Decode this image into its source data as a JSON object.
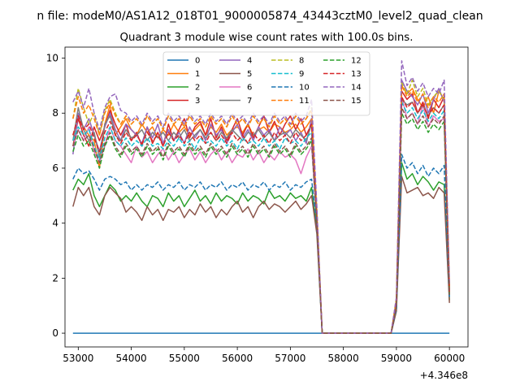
{
  "chart_data": {
    "type": "line",
    "suptitle": "n file: modeM0/AS1A12_018T01_9000005874_43443cztM0_level2_quad_clean",
    "title": "Quadrant 3 module wise count rates with 100.0s bins.",
    "xlabel": "",
    "ylabel": "",
    "x_offset_label": "+4.346e8",
    "xlim": [
      52750,
      60350
    ],
    "ylim": [
      -0.5,
      10.4
    ],
    "xticks": [
      53000,
      54000,
      55000,
      56000,
      57000,
      58000,
      59000,
      60000
    ],
    "yticks": [
      0,
      2,
      4,
      6,
      8,
      10
    ],
    "grid": false,
    "legend_position": "top-center",
    "legend_columns": 4,
    "x_start": 52900,
    "bin_width": 100,
    "series": [
      {
        "name": "0",
        "color": "#1f77b4",
        "dash": "solid",
        "values": [
          0,
          0,
          0,
          0,
          0,
          0,
          0,
          0,
          0,
          0,
          0,
          0,
          0,
          0,
          0,
          0,
          0,
          0,
          0,
          0,
          0,
          0,
          0,
          0,
          0,
          0,
          0,
          0,
          0,
          0,
          0,
          0,
          0,
          0,
          0,
          0,
          0,
          0,
          0,
          0,
          0,
          0,
          0,
          0,
          0,
          0,
          0,
          0,
          0,
          0,
          0,
          0,
          0,
          0,
          0,
          0,
          0,
          0,
          0,
          0,
          0,
          0,
          0,
          0,
          0,
          0,
          0,
          0,
          0,
          0,
          0,
          0
        ]
      },
      {
        "name": "1",
        "color": "#ff7f0e",
        "dash": "solid",
        "values": [
          7.2,
          7.8,
          7.5,
          7.2,
          7.0,
          6.0,
          7.6,
          8.3,
          7.2,
          7.5,
          7.8,
          7.4,
          7.2,
          7.6,
          7.3,
          7.5,
          7.1,
          7.4,
          7.2,
          7.6,
          7.3,
          7.5,
          7.2,
          7.4,
          7.6,
          7.2,
          7.5,
          7.3,
          7.6,
          7.2,
          7.4,
          7.5,
          7.3,
          7.6,
          7.2,
          7.4,
          7.5,
          7.3,
          7.6,
          7.5,
          7.3,
          7.4,
          7.6,
          7.3,
          7.5,
          7.8,
          4.0,
          0,
          0,
          0,
          0,
          0,
          0,
          0,
          0,
          0,
          0,
          0,
          0,
          0,
          0,
          1.2,
          9.0,
          8.7,
          8.9,
          8.5,
          8.2,
          8.6,
          8.0,
          8.8,
          8.5,
          1.6
        ]
      },
      {
        "name": "2",
        "color": "#2ca02c",
        "dash": "solid",
        "values": [
          5.2,
          5.6,
          5.4,
          5.8,
          5.0,
          4.6,
          5.0,
          5.4,
          5.2,
          4.8,
          5.0,
          4.8,
          5.1,
          4.8,
          4.6,
          5.0,
          4.9,
          4.6,
          5.1,
          4.8,
          5.0,
          4.6,
          4.9,
          5.2,
          4.8,
          5.0,
          4.7,
          5.1,
          4.8,
          5.0,
          4.9,
          4.7,
          5.1,
          4.8,
          5.0,
          4.9,
          4.7,
          5.2,
          4.9,
          5.0,
          4.8,
          5.1,
          4.9,
          5.0,
          4.8,
          5.3,
          3.8,
          0,
          0,
          0,
          0,
          0,
          0,
          0,
          0,
          0,
          0,
          0,
          0,
          0,
          0,
          0.9,
          6.2,
          5.6,
          5.8,
          5.4,
          5.7,
          5.5,
          5.2,
          5.5,
          5.4,
          1.2
        ]
      },
      {
        "name": "3",
        "color": "#d62728",
        "dash": "solid",
        "values": [
          6.8,
          7.8,
          7.2,
          6.8,
          7.5,
          7.0,
          7.5,
          8.1,
          7.6,
          7.2,
          7.6,
          7.0,
          7.3,
          6.8,
          7.5,
          6.9,
          7.3,
          6.8,
          7.6,
          7.0,
          7.4,
          7.8,
          7.1,
          7.5,
          7.7,
          7.2,
          7.8,
          7.1,
          7.5,
          7.0,
          7.4,
          7.8,
          7.2,
          7.6,
          7.1,
          7.5,
          7.9,
          7.3,
          7.7,
          7.2,
          7.6,
          7.9,
          7.4,
          7.8,
          7.2,
          7.6,
          4.2,
          0,
          0,
          0,
          0,
          0,
          0,
          0,
          0,
          0,
          0,
          0,
          0,
          0,
          0,
          1.1,
          8.8,
          8.5,
          8.7,
          8.0,
          8.4,
          7.8,
          8.5,
          8.2,
          8.6,
          1.5
        ]
      },
      {
        "name": "4",
        "color": "#9467bd",
        "dash": "solid",
        "values": [
          6.5,
          8.0,
          7.4,
          7.8,
          7.2,
          6.6,
          7.5,
          8.0,
          7.4,
          7.0,
          7.6,
          7.4,
          7.2,
          6.9,
          7.5,
          7.1,
          7.6,
          6.9,
          7.4,
          7.0,
          7.3,
          6.9,
          7.5,
          7.1,
          7.4,
          7.0,
          7.6,
          7.2,
          7.4,
          6.9,
          7.3,
          7.6,
          7.1,
          7.4,
          7.0,
          7.5,
          7.2,
          7.4,
          7.0,
          7.5,
          7.2,
          7.4,
          7.0,
          7.3,
          6.9,
          7.8,
          4.1,
          0,
          0,
          0,
          0,
          0,
          0,
          0,
          0,
          0,
          0,
          0,
          0,
          0,
          0,
          1.1,
          9.2,
          8.8,
          8.6,
          8.3,
          8.7,
          8.0,
          8.5,
          8.9,
          8.4,
          1.6
        ]
      },
      {
        "name": "5",
        "color": "#8c564b",
        "dash": "solid",
        "values": [
          4.6,
          5.3,
          5.0,
          5.3,
          4.6,
          4.3,
          5.0,
          5.3,
          5.1,
          4.9,
          4.4,
          4.6,
          4.4,
          4.1,
          4.6,
          4.3,
          4.5,
          4.1,
          4.5,
          4.4,
          4.6,
          4.2,
          4.5,
          4.3,
          4.7,
          4.4,
          4.6,
          4.2,
          4.5,
          4.3,
          4.6,
          4.8,
          4.4,
          4.6,
          4.2,
          4.6,
          4.8,
          4.5,
          4.7,
          4.6,
          4.4,
          4.6,
          4.8,
          4.5,
          4.7,
          5.0,
          3.6,
          0,
          0,
          0,
          0,
          0,
          0,
          0,
          0,
          0,
          0,
          0,
          0,
          0,
          0,
          0.8,
          5.7,
          5.1,
          5.2,
          5.3,
          5.0,
          5.1,
          4.9,
          5.3,
          5.1,
          1.1
        ]
      },
      {
        "name": "6",
        "color": "#e377c2",
        "dash": "solid",
        "values": [
          6.8,
          7.4,
          7.0,
          7.5,
          6.6,
          6.2,
          6.8,
          7.5,
          7.0,
          6.8,
          6.5,
          6.2,
          6.8,
          6.4,
          6.6,
          6.2,
          6.5,
          6.7,
          6.3,
          6.6,
          6.2,
          6.5,
          6.7,
          6.3,
          6.6,
          6.2,
          6.5,
          6.7,
          6.3,
          6.6,
          6.2,
          6.5,
          6.4,
          6.7,
          6.3,
          6.6,
          6.2,
          6.5,
          6.3,
          6.6,
          6.4,
          6.5,
          6.3,
          5.8,
          6.4,
          6.8,
          4.0,
          0,
          0,
          0,
          0,
          0,
          0,
          0,
          0,
          0,
          0,
          0,
          0,
          0,
          0,
          1.0,
          8.6,
          7.8,
          8.0,
          7.6,
          8.3,
          7.5,
          7.9,
          7.7,
          7.8,
          1.4
        ]
      },
      {
        "name": "7",
        "color": "#7f7f7f",
        "dash": "solid",
        "values": [
          7.0,
          8.2,
          7.4,
          7.0,
          7.3,
          6.4,
          7.6,
          7.9,
          7.2,
          7.0,
          7.4,
          7.1,
          7.2,
          7.4,
          7.0,
          7.3,
          7.1,
          7.3,
          7.0,
          7.3,
          7.1,
          7.4,
          7.0,
          7.2,
          7.4,
          7.1,
          7.3,
          7.0,
          7.3,
          7.1,
          7.4,
          7.2,
          7.0,
          7.3,
          7.2,
          7.4,
          7.1,
          7.3,
          7.0,
          7.2,
          7.3,
          7.1,
          7.4,
          7.2,
          7.0,
          7.6,
          4.2,
          0,
          0,
          0,
          0,
          0,
          0,
          0,
          0,
          0,
          0,
          0,
          0,
          0,
          0,
          1.1,
          8.5,
          8.3,
          8.4,
          8.0,
          8.3,
          7.9,
          8.2,
          8.0,
          8.3,
          1.5
        ]
      },
      {
        "name": "8",
        "color": "#bcbd22",
        "dash": "dashed",
        "values": [
          7.8,
          8.9,
          8.2,
          7.6,
          8.0,
          7.2,
          8.1,
          8.5,
          8.0,
          7.6,
          7.9,
          7.6,
          7.8,
          7.5,
          7.9,
          7.6,
          7.8,
          7.4,
          7.9,
          7.6,
          7.8,
          7.5,
          7.9,
          7.6,
          7.8,
          7.5,
          7.9,
          7.6,
          7.8,
          7.5,
          7.9,
          7.6,
          7.8,
          7.5,
          7.9,
          7.6,
          7.8,
          7.5,
          7.9,
          7.6,
          7.8,
          7.5,
          7.9,
          7.6,
          7.8,
          8.2,
          4.5,
          0,
          0,
          0,
          0,
          0,
          0,
          0,
          0,
          0,
          0,
          0,
          0,
          0,
          0,
          1.3,
          9.1,
          8.7,
          9.2,
          8.6,
          8.9,
          8.3,
          8.6,
          8.8,
          8.5,
          1.7
        ]
      },
      {
        "name": "9",
        "color": "#17becf",
        "dash": "dashed",
        "values": [
          7.0,
          7.5,
          7.2,
          7.4,
          6.8,
          6.3,
          7.1,
          7.5,
          7.0,
          6.8,
          7.1,
          6.8,
          7.0,
          6.8,
          7.1,
          6.8,
          6.9,
          6.7,
          7.0,
          6.8,
          7.1,
          6.8,
          7.0,
          6.7,
          7.1,
          6.9,
          7.0,
          6.8,
          7.1,
          6.8,
          7.0,
          6.7,
          7.1,
          6.9,
          7.0,
          6.8,
          7.1,
          6.8,
          7.0,
          6.7,
          7.1,
          6.9,
          7.0,
          6.8,
          7.1,
          7.3,
          4.1,
          0,
          0,
          0,
          0,
          0,
          0,
          0,
          0,
          0,
          0,
          0,
          0,
          0,
          0,
          1.0,
          8.4,
          8.0,
          8.2,
          7.8,
          8.1,
          7.7,
          8.0,
          7.8,
          8.1,
          1.5
        ]
      },
      {
        "name": "10",
        "color": "#1f77b4",
        "dash": "dashed",
        "values": [
          5.6,
          6.0,
          5.8,
          5.9,
          5.6,
          5.2,
          5.6,
          5.7,
          5.6,
          5.4,
          5.5,
          5.2,
          5.4,
          5.2,
          5.4,
          5.3,
          5.5,
          5.2,
          5.4,
          5.3,
          5.5,
          5.2,
          5.4,
          5.3,
          5.5,
          5.2,
          5.4,
          5.3,
          5.5,
          5.2,
          5.4,
          5.3,
          5.5,
          5.2,
          5.4,
          5.3,
          5.5,
          5.2,
          5.4,
          5.3,
          5.5,
          5.2,
          5.4,
          5.3,
          5.5,
          5.6,
          3.9,
          0,
          0,
          0,
          0,
          0,
          0,
          0,
          0,
          0,
          0,
          0,
          0,
          0,
          0,
          0.9,
          6.5,
          6.0,
          6.2,
          5.8,
          6.1,
          5.7,
          6.0,
          5.8,
          6.1,
          1.3
        ]
      },
      {
        "name": "11",
        "color": "#ff7f0e",
        "dash": "dashed",
        "values": [
          7.8,
          8.6,
          8.0,
          8.3,
          7.8,
          7.2,
          8.0,
          8.4,
          7.9,
          7.6,
          7.9,
          7.6,
          7.8,
          7.5,
          7.9,
          7.6,
          7.8,
          7.4,
          7.9,
          7.6,
          7.8,
          7.5,
          7.9,
          7.6,
          7.8,
          7.5,
          7.9,
          7.6,
          7.8,
          7.5,
          7.9,
          7.6,
          7.8,
          7.5,
          7.9,
          7.6,
          7.8,
          7.5,
          7.9,
          7.6,
          7.8,
          7.5,
          7.9,
          7.6,
          7.8,
          8.1,
          4.4,
          0,
          0,
          0,
          0,
          0,
          0,
          0,
          0,
          0,
          0,
          0,
          0,
          0,
          0,
          1.2,
          9.0,
          8.6,
          8.8,
          8.4,
          8.7,
          8.2,
          8.6,
          8.4,
          8.7,
          1.6
        ]
      },
      {
        "name": "12",
        "color": "#2ca02c",
        "dash": "dashed",
        "values": [
          6.6,
          7.2,
          6.8,
          7.0,
          6.5,
          6.0,
          6.8,
          7.2,
          6.7,
          6.4,
          6.8,
          6.5,
          6.7,
          6.4,
          6.8,
          6.5,
          6.7,
          6.3,
          6.8,
          6.5,
          6.7,
          6.4,
          6.8,
          6.5,
          6.7,
          6.4,
          6.8,
          6.5,
          6.7,
          6.4,
          6.8,
          6.5,
          6.7,
          6.4,
          6.8,
          6.5,
          6.7,
          6.4,
          6.8,
          6.5,
          6.7,
          6.4,
          6.8,
          6.5,
          6.7,
          7.0,
          4.0,
          0,
          0,
          0,
          0,
          0,
          0,
          0,
          0,
          0,
          0,
          0,
          0,
          0,
          0,
          1.0,
          8.0,
          7.6,
          7.8,
          7.4,
          7.7,
          7.3,
          7.6,
          7.4,
          7.7,
          1.4
        ]
      },
      {
        "name": "13",
        "color": "#d62728",
        "dash": "dashed",
        "values": [
          7.2,
          7.9,
          7.4,
          7.6,
          7.1,
          6.6,
          7.3,
          7.7,
          7.2,
          6.9,
          7.3,
          7.0,
          7.2,
          6.9,
          7.3,
          7.0,
          7.2,
          6.8,
          7.3,
          7.0,
          7.2,
          6.9,
          7.3,
          7.0,
          7.2,
          6.9,
          7.3,
          7.0,
          7.2,
          6.9,
          7.3,
          7.0,
          7.2,
          6.9,
          7.3,
          7.0,
          7.2,
          6.9,
          7.3,
          7.0,
          7.2,
          6.9,
          7.3,
          7.0,
          7.2,
          7.6,
          4.2,
          0,
          0,
          0,
          0,
          0,
          0,
          0,
          0,
          0,
          0,
          0,
          0,
          0,
          0,
          1.1,
          8.6,
          8.2,
          8.4,
          8.0,
          8.3,
          7.9,
          8.2,
          8.0,
          8.3,
          1.5
        ]
      },
      {
        "name": "14",
        "color": "#9467bd",
        "dash": "dashed",
        "values": [
          8.4,
          8.8,
          8.2,
          8.9,
          8.0,
          7.4,
          8.2,
          8.6,
          8.7,
          8.1,
          8.0,
          7.7,
          7.9,
          7.6,
          8.0,
          7.7,
          7.9,
          7.5,
          8.0,
          7.7,
          7.9,
          7.6,
          8.0,
          7.7,
          7.9,
          7.6,
          8.0,
          7.7,
          7.9,
          7.6,
          8.0,
          7.7,
          7.9,
          7.6,
          8.0,
          7.7,
          7.9,
          7.6,
          8.0,
          7.7,
          7.9,
          7.6,
          8.0,
          7.7,
          7.9,
          8.5,
          4.6,
          0,
          0,
          0,
          0,
          0,
          0,
          0,
          0,
          0,
          0,
          0,
          0,
          0,
          0,
          1.3,
          9.9,
          9.0,
          9.3,
          8.8,
          9.1,
          8.6,
          8.9,
          8.7,
          9.2,
          1.8
        ]
      },
      {
        "name": "15",
        "color": "#8c564b",
        "dash": "dashed",
        "values": [
          6.8,
          7.4,
          7.0,
          7.2,
          6.7,
          6.2,
          6.9,
          7.3,
          6.8,
          6.5,
          6.9,
          6.6,
          6.8,
          6.5,
          6.9,
          6.6,
          6.8,
          6.4,
          6.9,
          6.6,
          6.8,
          6.5,
          6.9,
          6.6,
          6.8,
          6.5,
          6.9,
          6.6,
          6.8,
          6.5,
          6.9,
          6.6,
          6.8,
          6.5,
          6.9,
          6.6,
          6.8,
          6.5,
          6.9,
          6.6,
          6.8,
          6.5,
          6.9,
          6.6,
          6.8,
          7.1,
          4.0,
          0,
          0,
          0,
          0,
          0,
          0,
          0,
          0,
          0,
          0,
          0,
          0,
          0,
          0,
          1.0,
          8.2,
          7.8,
          8.0,
          7.6,
          7.9,
          7.5,
          7.8,
          7.6,
          7.9,
          1.4
        ]
      }
    ]
  }
}
